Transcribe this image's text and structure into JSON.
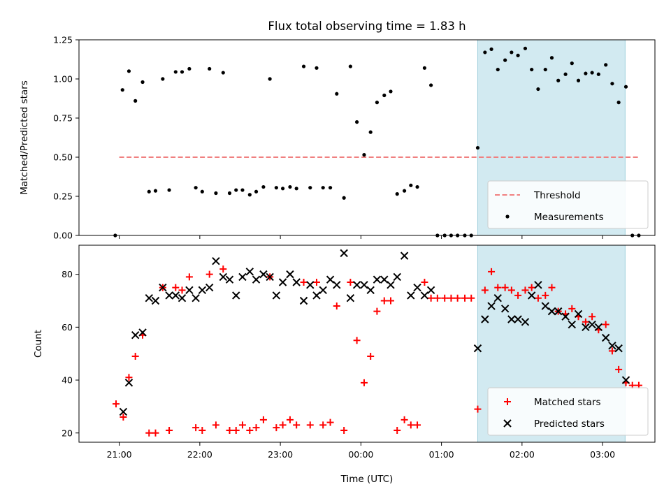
{
  "chart_data": [
    {
      "type": "scatter",
      "title": "Flux total observing time = 1.83 h",
      "xlabel": "",
      "ylabel": "Matched/Predicted stars",
      "ylim": [
        0,
        1.25
      ],
      "yticks": [
        "0.00",
        "0.25",
        "0.50",
        "0.75",
        "1.00",
        "1.25"
      ],
      "xlim_hours": [
        20.5,
        27.65
      ],
      "xticks": [
        "21:00",
        "22:00",
        "23:00",
        "00:00",
        "01:00",
        "02:00",
        "03:00"
      ],
      "shaded_span_hours": [
        25.45,
        27.28
      ],
      "shade_color": "#add8e6",
      "threshold": {
        "name": "Threshold",
        "value": 0.5,
        "x_hours": [
          21.0,
          27.45
        ],
        "color": "#f08080"
      },
      "legend": {
        "position": "lower right",
        "entries": [
          "Threshold",
          "Measurements"
        ]
      },
      "series": [
        {
          "name": "Measurements",
          "color": "#000000",
          "points": [
            [
              20.95,
              0.0
            ],
            [
              21.04,
              0.93
            ],
            [
              21.12,
              1.05
            ],
            [
              21.2,
              0.86
            ],
            [
              21.29,
              0.98
            ],
            [
              21.37,
              0.28
            ],
            [
              21.45,
              0.285
            ],
            [
              21.54,
              1.0
            ],
            [
              21.62,
              0.29
            ],
            [
              21.7,
              1.045
            ],
            [
              21.78,
              1.045
            ],
            [
              21.87,
              1.065
            ],
            [
              21.95,
              0.305
            ],
            [
              22.03,
              0.28
            ],
            [
              22.12,
              1.065
            ],
            [
              22.2,
              0.27
            ],
            [
              22.29,
              1.04
            ],
            [
              22.37,
              0.27
            ],
            [
              22.45,
              0.29
            ],
            [
              22.53,
              0.29
            ],
            [
              22.62,
              0.26
            ],
            [
              22.7,
              0.28
            ],
            [
              22.79,
              0.31
            ],
            [
              22.87,
              1.0
            ],
            [
              22.95,
              0.305
            ],
            [
              23.03,
              0.3
            ],
            [
              23.12,
              0.31
            ],
            [
              23.2,
              0.3
            ],
            [
              23.29,
              1.08
            ],
            [
              23.37,
              0.305
            ],
            [
              23.45,
              1.07
            ],
            [
              23.53,
              0.305
            ],
            [
              23.62,
              0.305
            ],
            [
              23.7,
              0.905
            ],
            [
              23.79,
              0.24
            ],
            [
              23.87,
              1.08
            ],
            [
              23.95,
              0.725
            ],
            [
              24.04,
              0.515
            ],
            [
              24.12,
              0.66
            ],
            [
              24.2,
              0.85
            ],
            [
              24.29,
              0.895
            ],
            [
              24.37,
              0.92
            ],
            [
              24.45,
              0.265
            ],
            [
              24.54,
              0.285
            ],
            [
              24.62,
              0.32
            ],
            [
              24.7,
              0.31
            ],
            [
              24.79,
              1.07
            ],
            [
              24.87,
              0.96
            ],
            [
              24.95,
              0.0
            ],
            [
              25.04,
              0.0
            ],
            [
              25.12,
              0.0
            ],
            [
              25.2,
              0.0
            ],
            [
              25.29,
              0.0
            ],
            [
              25.37,
              0.0
            ],
            [
              25.45,
              0.56
            ],
            [
              25.54,
              1.17
            ],
            [
              25.62,
              1.19
            ],
            [
              25.7,
              1.06
            ],
            [
              25.79,
              1.12
            ],
            [
              25.87,
              1.17
            ],
            [
              25.95,
              1.15
            ],
            [
              26.04,
              1.195
            ],
            [
              26.12,
              1.06
            ],
            [
              26.2,
              0.935
            ],
            [
              26.29,
              1.06
            ],
            [
              26.37,
              1.135
            ],
            [
              26.45,
              0.99
            ],
            [
              26.54,
              1.03
            ],
            [
              26.62,
              1.1
            ],
            [
              26.7,
              0.99
            ],
            [
              26.79,
              1.035
            ],
            [
              26.87,
              1.04
            ],
            [
              26.95,
              1.03
            ],
            [
              27.04,
              1.09
            ],
            [
              27.12,
              0.97
            ],
            [
              27.2,
              0.85
            ],
            [
              27.29,
              0.95
            ],
            [
              27.37,
              0.0
            ],
            [
              27.45,
              0.0
            ]
          ]
        }
      ]
    },
    {
      "type": "scatter",
      "title": "",
      "xlabel": "Time (UTC)",
      "ylabel": "Count",
      "ylim": [
        16.5,
        91
      ],
      "yticks": [
        "20",
        "40",
        "60",
        "80"
      ],
      "xlim_hours": [
        20.5,
        27.65
      ],
      "xticks": [
        "21:00",
        "22:00",
        "23:00",
        "00:00",
        "01:00",
        "02:00",
        "03:00"
      ],
      "shaded_span_hours": [
        25.45,
        27.28
      ],
      "shade_color": "#add8e6",
      "legend": {
        "position": "lower right",
        "entries": [
          "Matched stars",
          "Predicted stars"
        ]
      },
      "series": [
        {
          "name": "Matched stars",
          "marker": "+",
          "color": "#ff0000",
          "points": [
            [
              20.96,
              31
            ],
            [
              21.05,
              26
            ],
            [
              21.12,
              41
            ],
            [
              21.2,
              49
            ],
            [
              21.29,
              57
            ],
            [
              21.37,
              20
            ],
            [
              21.45,
              20
            ],
            [
              21.54,
              75
            ],
            [
              21.62,
              21
            ],
            [
              21.7,
              75
            ],
            [
              21.78,
              74
            ],
            [
              21.87,
              79
            ],
            [
              21.95,
              22
            ],
            [
              22.03,
              21
            ],
            [
              22.12,
              80
            ],
            [
              22.2,
              23
            ],
            [
              22.29,
              82
            ],
            [
              22.37,
              21
            ],
            [
              22.45,
              21
            ],
            [
              22.53,
              23
            ],
            [
              22.62,
              21
            ],
            [
              22.7,
              22
            ],
            [
              22.79,
              25
            ],
            [
              22.87,
              79
            ],
            [
              22.95,
              22
            ],
            [
              23.03,
              23
            ],
            [
              23.12,
              25
            ],
            [
              23.2,
              23
            ],
            [
              23.29,
              77
            ],
            [
              23.37,
              23
            ],
            [
              23.45,
              77
            ],
            [
              23.53,
              23
            ],
            [
              23.62,
              24
            ],
            [
              23.7,
              68
            ],
            [
              23.79,
              21
            ],
            [
              23.87,
              77
            ],
            [
              23.95,
              55
            ],
            [
              24.04,
              39
            ],
            [
              24.12,
              49
            ],
            [
              24.2,
              66
            ],
            [
              24.29,
              70
            ],
            [
              24.37,
              70
            ],
            [
              24.45,
              21
            ],
            [
              24.54,
              25
            ],
            [
              24.62,
              23
            ],
            [
              24.7,
              23
            ],
            [
              24.79,
              77
            ],
            [
              24.87,
              71
            ],
            [
              24.95,
              71
            ],
            [
              25.04,
              71
            ],
            [
              25.12,
              71
            ],
            [
              25.2,
              71
            ],
            [
              25.29,
              71
            ],
            [
              25.37,
              71
            ],
            [
              25.45,
              29
            ],
            [
              25.54,
              74
            ],
            [
              25.62,
              81
            ],
            [
              25.7,
              75
            ],
            [
              25.79,
              75
            ],
            [
              25.87,
              74
            ],
            [
              25.95,
              72
            ],
            [
              26.04,
              74
            ],
            [
              26.12,
              75
            ],
            [
              26.2,
              71
            ],
            [
              26.29,
              72
            ],
            [
              26.37,
              75
            ],
            [
              26.45,
              66
            ],
            [
              26.54,
              65
            ],
            [
              26.62,
              67
            ],
            [
              26.7,
              64
            ],
            [
              26.79,
              62
            ],
            [
              26.87,
              64
            ],
            [
              26.95,
              59
            ],
            [
              27.04,
              61
            ],
            [
              27.12,
              51
            ],
            [
              27.2,
              44
            ],
            [
              27.29,
              39
            ],
            [
              27.37,
              38
            ],
            [
              27.45,
              38
            ]
          ]
        },
        {
          "name": "Predicted stars",
          "marker": "x",
          "color": "#000000",
          "points": [
            [
              21.05,
              28
            ],
            [
              21.12,
              39
            ],
            [
              21.2,
              57
            ],
            [
              21.29,
              58
            ],
            [
              21.37,
              71
            ],
            [
              21.45,
              70
            ],
            [
              21.54,
              75
            ],
            [
              21.62,
              72
            ],
            [
              21.7,
              72
            ],
            [
              21.78,
              71
            ],
            [
              21.87,
              74
            ],
            [
              21.95,
              71
            ],
            [
              22.03,
              74
            ],
            [
              22.12,
              75
            ],
            [
              22.2,
              85
            ],
            [
              22.29,
              79
            ],
            [
              22.37,
              78
            ],
            [
              22.45,
              72
            ],
            [
              22.53,
              79
            ],
            [
              22.62,
              81
            ],
            [
              22.7,
              78
            ],
            [
              22.79,
              80
            ],
            [
              22.87,
              79
            ],
            [
              22.95,
              72
            ],
            [
              23.03,
              77
            ],
            [
              23.12,
              80
            ],
            [
              23.2,
              77
            ],
            [
              23.29,
              70
            ],
            [
              23.37,
              76
            ],
            [
              23.45,
              72
            ],
            [
              23.53,
              74
            ],
            [
              23.62,
              78
            ],
            [
              23.7,
              76
            ],
            [
              23.79,
              88
            ],
            [
              23.87,
              71
            ],
            [
              23.95,
              76
            ],
            [
              24.04,
              76
            ],
            [
              24.12,
              74
            ],
            [
              24.2,
              78
            ],
            [
              24.29,
              78
            ],
            [
              24.37,
              76
            ],
            [
              24.45,
              79
            ],
            [
              24.54,
              87
            ],
            [
              24.62,
              72
            ],
            [
              24.7,
              75
            ],
            [
              24.79,
              72
            ],
            [
              24.87,
              74
            ],
            [
              25.45,
              52
            ],
            [
              25.54,
              63
            ],
            [
              25.62,
              68
            ],
            [
              25.7,
              71
            ],
            [
              25.79,
              67
            ],
            [
              25.87,
              63
            ],
            [
              25.95,
              63
            ],
            [
              26.04,
              62
            ],
            [
              26.12,
              72
            ],
            [
              26.2,
              76
            ],
            [
              26.29,
              68
            ],
            [
              26.37,
              66
            ],
            [
              26.45,
              66
            ],
            [
              26.54,
              64
            ],
            [
              26.62,
              61
            ],
            [
              26.7,
              65
            ],
            [
              26.79,
              60
            ],
            [
              26.87,
              61
            ],
            [
              26.95,
              60
            ],
            [
              27.04,
              56
            ],
            [
              27.12,
              53
            ],
            [
              27.2,
              52
            ],
            [
              27.29,
              40
            ]
          ]
        }
      ]
    }
  ]
}
